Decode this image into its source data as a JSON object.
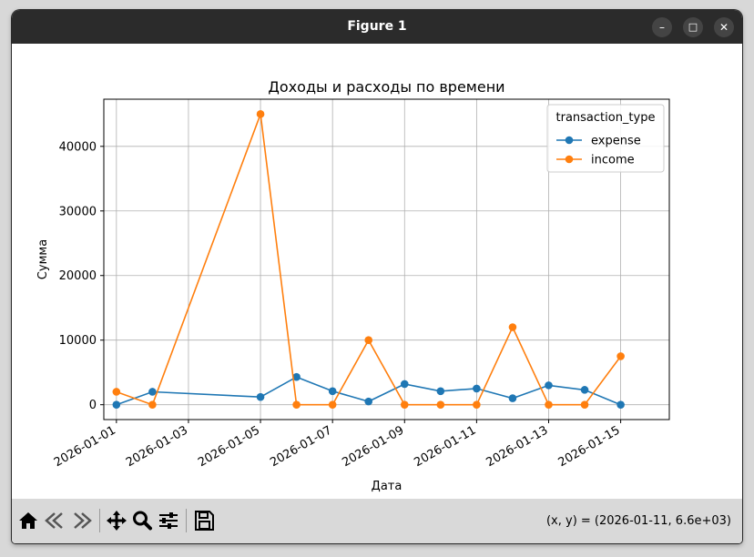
{
  "window": {
    "title": "Figure 1",
    "minimize_glyph": "–",
    "maximize_glyph": "□",
    "close_glyph": "✕"
  },
  "toolbar": {
    "icons": [
      "home-icon",
      "back-icon",
      "forward-icon",
      "pan-icon",
      "zoom-icon",
      "configure-subplots-icon",
      "save-icon"
    ],
    "coords_text": "(x, y) = (2026-01-11, 6.6e+03)"
  },
  "chart_data": {
    "type": "line",
    "title": "Доходы и расходы по времени",
    "xlabel": "Дата",
    "ylabel": "Сумма",
    "x_ticks": [
      "2026-01-01",
      "2026-01-03",
      "2026-01-05",
      "2026-01-07",
      "2026-01-09",
      "2026-01-11",
      "2026-01-13",
      "2026-01-15"
    ],
    "y_ticks": [
      0,
      10000,
      20000,
      30000,
      40000
    ],
    "xlim": [
      "2025-12-31",
      "2026-01-16"
    ],
    "ylim": [
      -2300,
      47300
    ],
    "grid": true,
    "legend": {
      "title": "transaction_type",
      "placement": "top-right"
    },
    "series": [
      {
        "name": "expense",
        "color": "#1f77b4",
        "points": [
          [
            "2026-01-01",
            0
          ],
          [
            "2026-01-02",
            2000
          ],
          [
            "2026-01-05",
            1200
          ],
          [
            "2026-01-06",
            4300
          ],
          [
            "2026-01-07",
            2100
          ],
          [
            "2026-01-08",
            500
          ],
          [
            "2026-01-09",
            3200
          ],
          [
            "2026-01-10",
            2100
          ],
          [
            "2026-01-11",
            2500
          ],
          [
            "2026-01-12",
            1000
          ],
          [
            "2026-01-13",
            3000
          ],
          [
            "2026-01-14",
            2300
          ],
          [
            "2026-01-15",
            0
          ]
        ]
      },
      {
        "name": "income",
        "color": "#ff7f0e",
        "points": [
          [
            "2026-01-01",
            2000
          ],
          [
            "2026-01-02",
            0
          ],
          [
            "2026-01-05",
            45000
          ],
          [
            "2026-01-06",
            0
          ],
          [
            "2026-01-07",
            0
          ],
          [
            "2026-01-08",
            10000
          ],
          [
            "2026-01-09",
            0
          ],
          [
            "2026-01-10",
            0
          ],
          [
            "2026-01-11",
            0
          ],
          [
            "2026-01-12",
            12000
          ],
          [
            "2026-01-13",
            0
          ],
          [
            "2026-01-14",
            0
          ],
          [
            "2026-01-15",
            7500
          ]
        ]
      }
    ]
  }
}
